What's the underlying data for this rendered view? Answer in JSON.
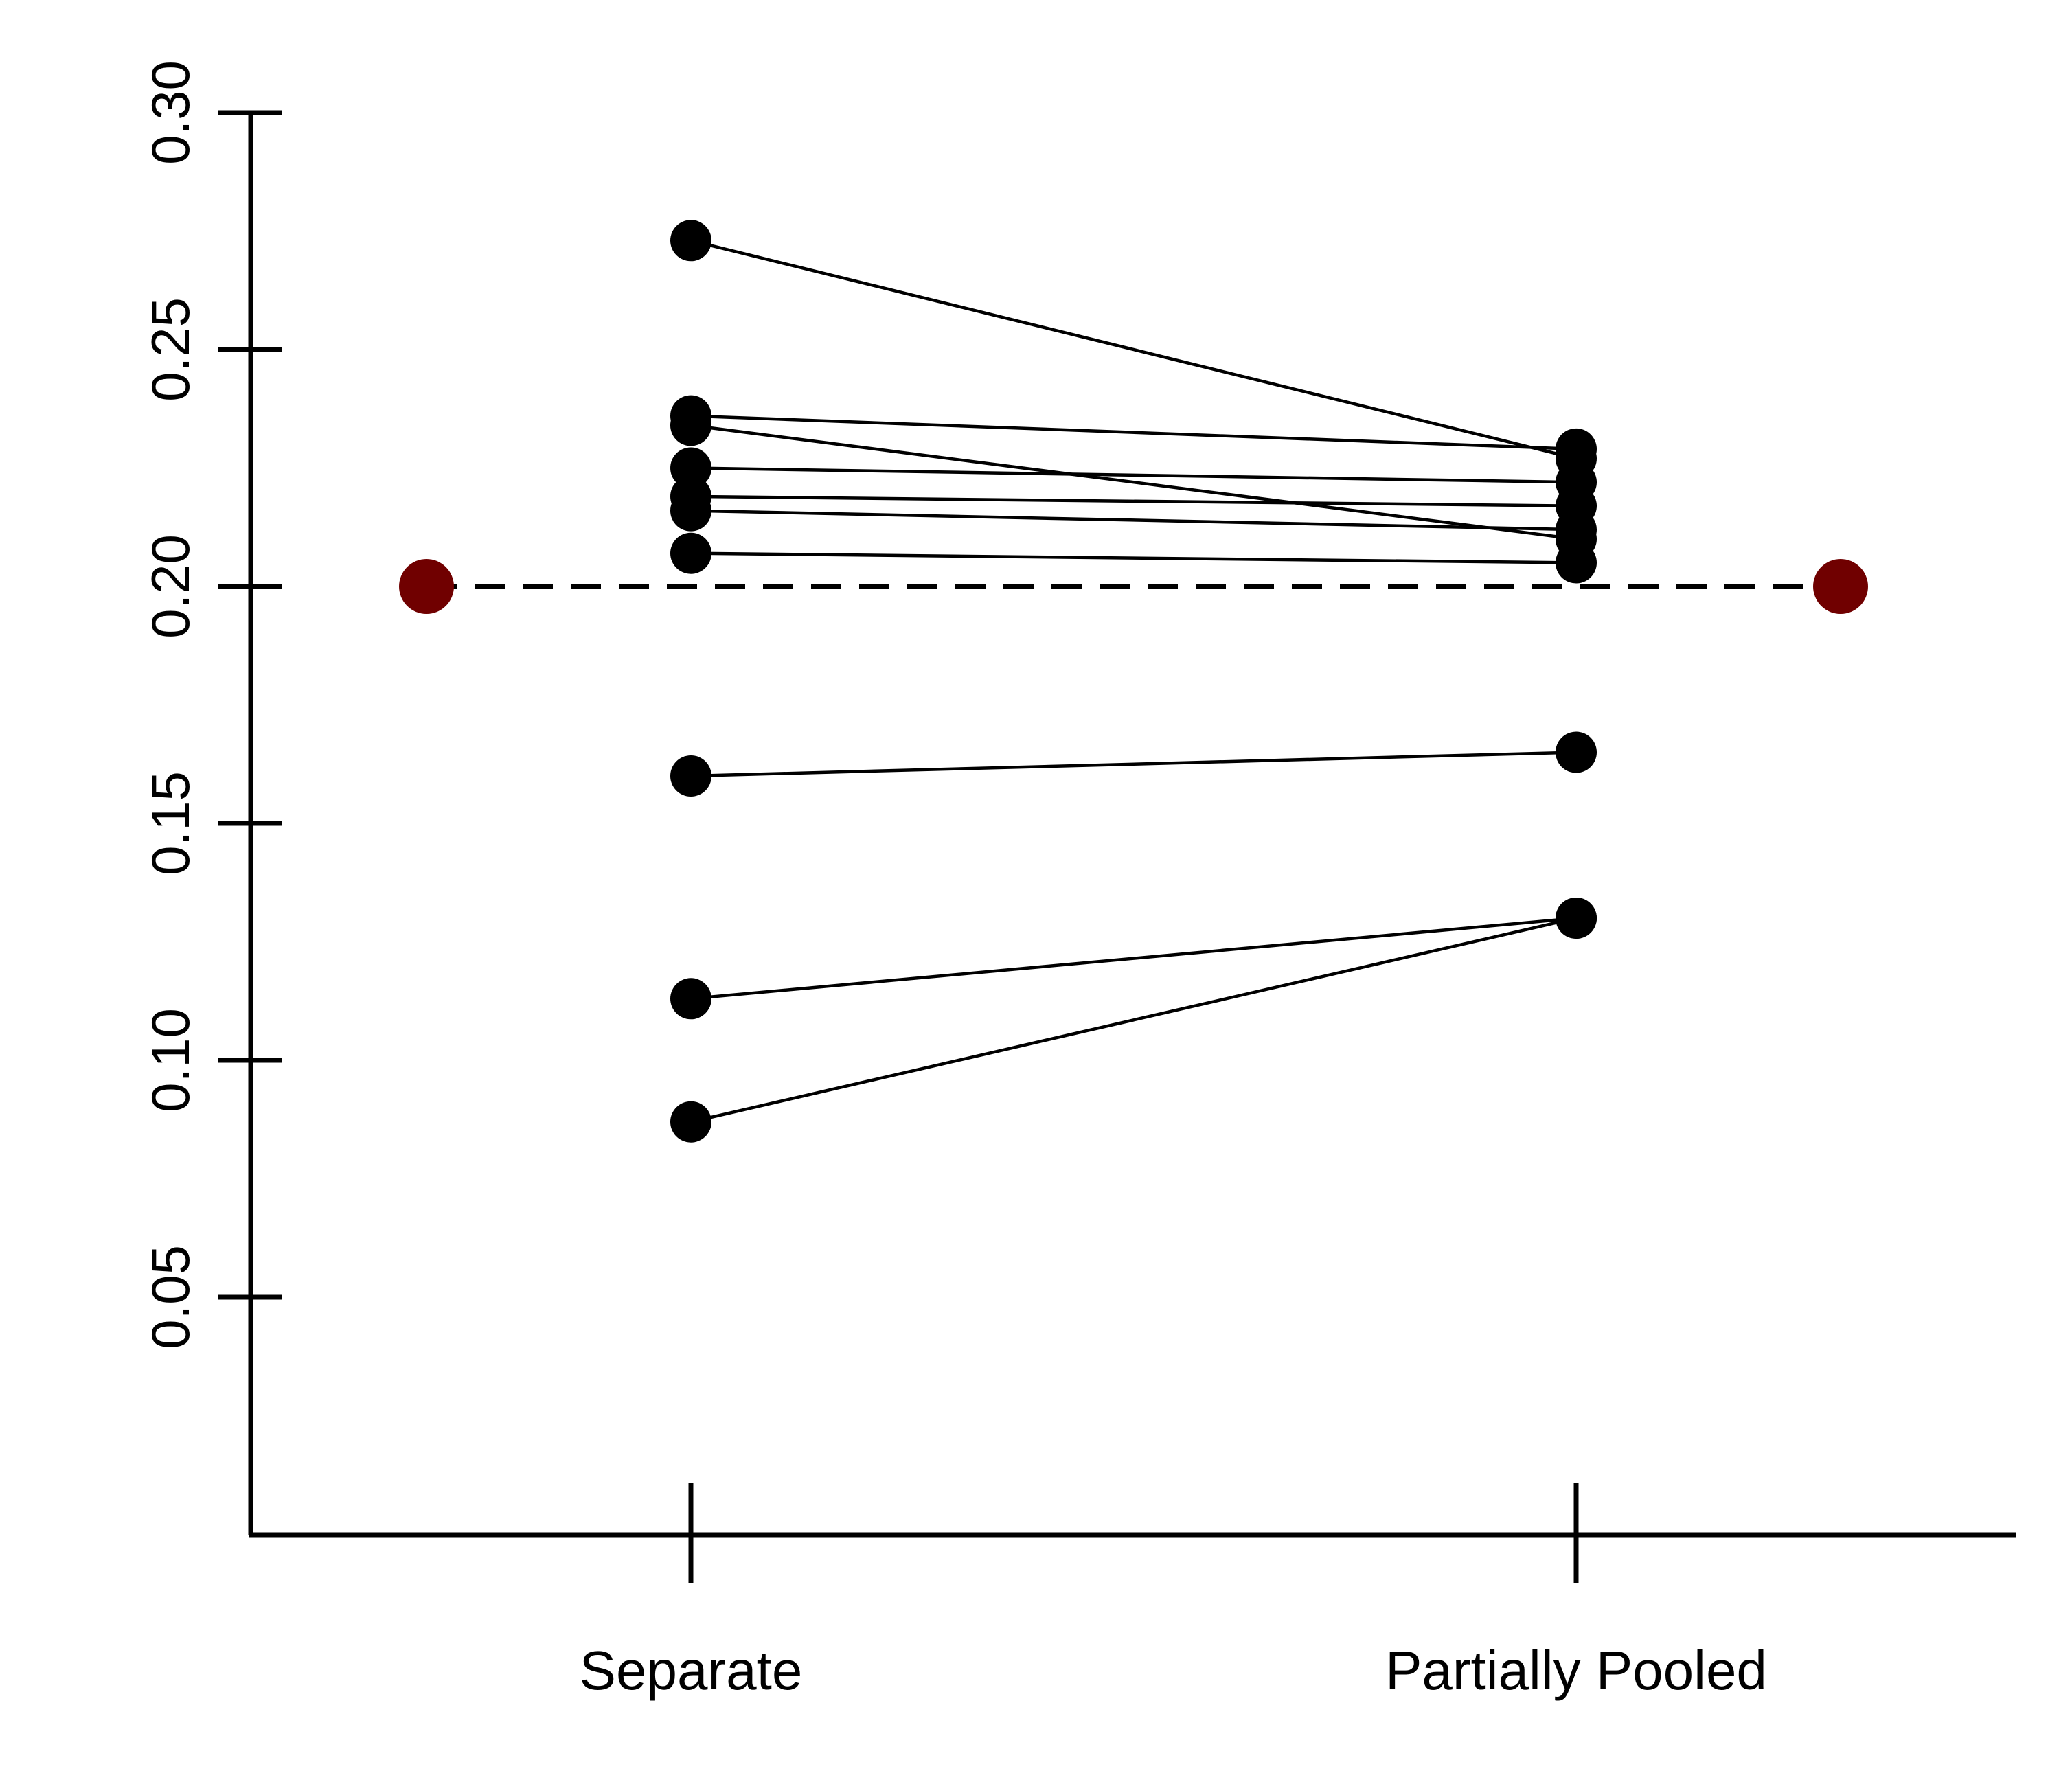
{
  "chart_data": {
    "type": "scatter",
    "title": "",
    "xlabel": "",
    "ylabel": "",
    "categories": [
      "Separate",
      "Partially Pooled"
    ],
    "y_ticks": [
      "0.05",
      "0.10",
      "0.15",
      "0.20",
      "0.25",
      "0.30"
    ],
    "ylim": [
      0.0,
      0.3
    ],
    "grid": false,
    "pairs": [
      {
        "separate": 0.273,
        "pooled": 0.227
      },
      {
        "separate": 0.236,
        "pooled": 0.229
      },
      {
        "separate": 0.234,
        "pooled": 0.21
      },
      {
        "separate": 0.225,
        "pooled": 0.222
      },
      {
        "separate": 0.219,
        "pooled": 0.217
      },
      {
        "separate": 0.216,
        "pooled": 0.212
      },
      {
        "separate": 0.207,
        "pooled": 0.205
      },
      {
        "separate": 0.16,
        "pooled": 0.165
      },
      {
        "separate": 0.113,
        "pooled": 0.13
      },
      {
        "separate": 0.087,
        "pooled": 0.13
      }
    ],
    "reference": {
      "value": 0.2,
      "style": "dashed",
      "endpoint_color": "#700000"
    },
    "point_color": "#000000"
  }
}
